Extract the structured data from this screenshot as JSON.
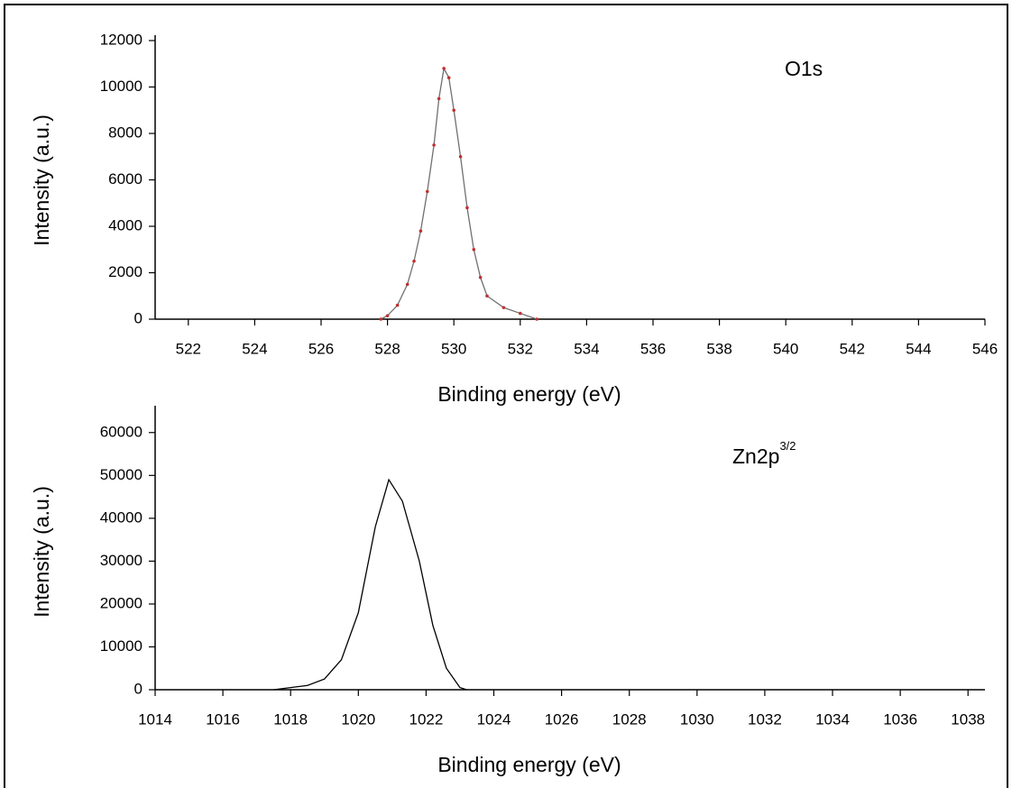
{
  "chart_data": [
    {
      "type": "line",
      "annotation": "O1s",
      "xlabel": "Binding energy (eV)",
      "ylabel": "Intensity (a.u.)",
      "x": [
        527.8,
        528.0,
        528.3,
        528.6,
        528.8,
        529.0,
        529.2,
        529.4,
        529.55,
        529.7,
        529.85,
        530.0,
        530.2,
        530.4,
        530.6,
        530.8,
        531.0,
        531.5,
        532.0,
        532.5
      ],
      "values": [
        0,
        150,
        600,
        1500,
        2500,
        3800,
        5500,
        7500,
        9500,
        10800,
        10400,
        9000,
        7000,
        4800,
        3000,
        1800,
        1000,
        500,
        250,
        0
      ],
      "color": "#707070",
      "marker_color": "#c03030",
      "xlim": [
        521,
        546
      ],
      "xticks": [
        522,
        524,
        526,
        528,
        530,
        532,
        534,
        536,
        538,
        540,
        542,
        544,
        546
      ],
      "ylim": [
        0,
        12000
      ],
      "yticks": [
        0,
        2000,
        4000,
        6000,
        8000,
        10000,
        12000
      ]
    },
    {
      "type": "line",
      "annotation": "Zn2p",
      "annotation_sup": "3/2",
      "xlabel": "Binding energy (eV)",
      "ylabel": "Intensity (a.u.)",
      "x": [
        1017.5,
        1018.0,
        1018.5,
        1019.0,
        1019.5,
        1020.0,
        1020.5,
        1020.9,
        1021.3,
        1021.8,
        1022.2,
        1022.6,
        1023.0,
        1023.2
      ],
      "values": [
        0,
        500,
        1000,
        2500,
        7000,
        18000,
        38000,
        49000,
        44000,
        30000,
        15000,
        5000,
        500,
        0
      ],
      "color": "#000000",
      "xlim": [
        1014,
        1038.5
      ],
      "xticks": [
        1014,
        1016,
        1018,
        1020,
        1022,
        1024,
        1026,
        1028,
        1030,
        1032,
        1034,
        1036,
        1038
      ],
      "ylim": [
        0,
        65000
      ],
      "yticks": [
        0,
        10000,
        20000,
        30000,
        40000,
        50000,
        60000
      ]
    }
  ]
}
